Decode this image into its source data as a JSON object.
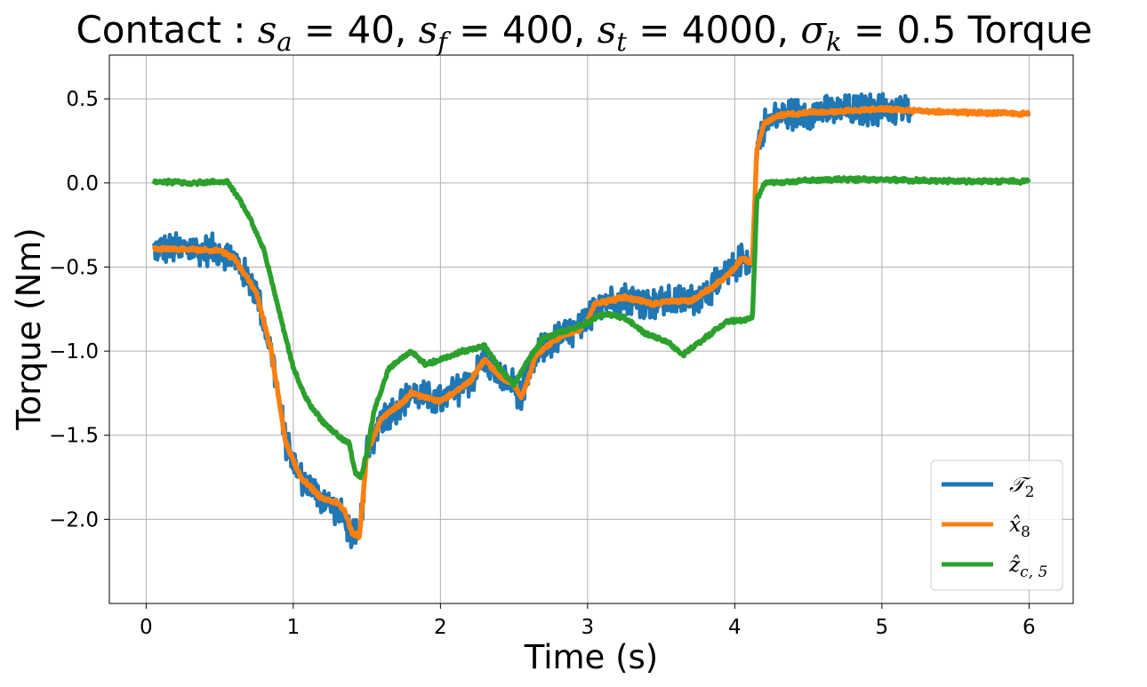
{
  "chart_data": {
    "type": "line",
    "title": "Contact : s_a = 40, s_f = 400, s_t = 4000, σ_k = 0.5 Torque",
    "title_parts": [
      {
        "t": "Contact : ",
        "s": "n"
      },
      {
        "t": "s",
        "s": "i"
      },
      {
        "t": "a",
        "s": "sub"
      },
      {
        "t": " = 40, ",
        "s": "n"
      },
      {
        "t": "s",
        "s": "i"
      },
      {
        "t": "f",
        "s": "sub"
      },
      {
        "t": " = 400, ",
        "s": "n"
      },
      {
        "t": "s",
        "s": "i"
      },
      {
        "t": "t",
        "s": "sub"
      },
      {
        "t": " = 4000, ",
        "s": "n"
      },
      {
        "t": "σ",
        "s": "i"
      },
      {
        "t": "k",
        "s": "sub"
      },
      {
        "t": " = 0.5 Torque",
        "s": "n"
      }
    ],
    "xlabel": "Time (s)",
    "ylabel": "Torque (Nm)",
    "xlim": [
      -0.25,
      6.3
    ],
    "ylim": [
      -2.5,
      0.76
    ],
    "xticks": [
      0,
      1,
      2,
      3,
      4,
      5,
      6
    ],
    "xtick_labels": [
      "0",
      "1",
      "2",
      "3",
      "4",
      "5",
      "6"
    ],
    "yticks": [
      0.5,
      0.0,
      -0.5,
      -1.0,
      -1.5,
      -2.0
    ],
    "ytick_labels": [
      "0.5",
      "0.0",
      "−0.5",
      "−1.0",
      "−1.5",
      "−2.0"
    ],
    "grid": true,
    "legend_position": "bottom-right",
    "series": [
      {
        "name": "𝒯2",
        "legend_main": "𝒯",
        "legend_sub": "2",
        "color": "#1f77b4",
        "noise": 0.1,
        "x": [
          0.05,
          0.5,
          0.6,
          0.75,
          0.85,
          0.95,
          1.05,
          1.2,
          1.3,
          1.35,
          1.4,
          1.45,
          1.5,
          1.6,
          1.75,
          1.8,
          2.0,
          2.2,
          2.3,
          2.35,
          2.4,
          2.5,
          2.55,
          2.65,
          2.8,
          2.95,
          3.0,
          3.05,
          3.25,
          3.45,
          3.6,
          3.7,
          3.85,
          3.95,
          4.05,
          4.1,
          4.12,
          4.15,
          4.2,
          4.3,
          4.5,
          4.8,
          5.0,
          5.2,
          5.5,
          6.0
        ],
        "y": [
          -0.39,
          -0.4,
          -0.45,
          -0.65,
          -1.0,
          -1.55,
          -1.75,
          -1.88,
          -1.95,
          -2.0,
          -2.1,
          -2.1,
          -1.6,
          -1.4,
          -1.3,
          -1.25,
          -1.3,
          -1.18,
          -1.05,
          -1.1,
          -1.15,
          -1.2,
          -1.28,
          -1.02,
          -0.92,
          -0.87,
          -0.82,
          -0.72,
          -0.68,
          -0.72,
          -0.7,
          -0.7,
          -0.62,
          -0.55,
          -0.45,
          -0.47,
          -0.47,
          0.2,
          0.35,
          0.4,
          0.42,
          0.43,
          0.44,
          0.43,
          0.42,
          0.41
        ]
      },
      {
        "name": "x̂8",
        "legend_main": "x̂",
        "legend_sub": "8",
        "color": "#ff7f0e",
        "noise": 0.012,
        "x": [
          0.05,
          0.5,
          0.6,
          0.75,
          0.85,
          0.95,
          1.05,
          1.2,
          1.3,
          1.35,
          1.4,
          1.45,
          1.5,
          1.6,
          1.75,
          1.8,
          2.0,
          2.2,
          2.3,
          2.35,
          2.4,
          2.5,
          2.55,
          2.65,
          2.8,
          2.95,
          3.0,
          3.05,
          3.25,
          3.45,
          3.6,
          3.7,
          3.85,
          3.95,
          4.05,
          4.1,
          4.12,
          4.15,
          4.2,
          4.3,
          4.5,
          4.8,
          5.0,
          5.2,
          5.5,
          6.0
        ],
        "y": [
          -0.39,
          -0.4,
          -0.45,
          -0.65,
          -1.0,
          -1.55,
          -1.75,
          -1.88,
          -1.9,
          -1.95,
          -2.08,
          -2.1,
          -1.6,
          -1.4,
          -1.3,
          -1.25,
          -1.3,
          -1.18,
          -1.05,
          -1.1,
          -1.15,
          -1.2,
          -1.28,
          -1.02,
          -0.92,
          -0.87,
          -0.82,
          -0.72,
          -0.68,
          -0.72,
          -0.7,
          -0.7,
          -0.62,
          -0.55,
          -0.45,
          -0.47,
          -0.47,
          0.2,
          0.35,
          0.4,
          0.42,
          0.43,
          0.44,
          0.43,
          0.42,
          0.41
        ]
      },
      {
        "name": "ẑc,5",
        "legend_main": "ẑ",
        "legend_sub": "c, 5",
        "color": "#2ca02c",
        "noise": 0.012,
        "x": [
          0.05,
          0.3,
          0.55,
          0.62,
          0.7,
          0.8,
          0.9,
          1.0,
          1.1,
          1.2,
          1.3,
          1.38,
          1.42,
          1.46,
          1.5,
          1.55,
          1.65,
          1.8,
          1.9,
          2.0,
          2.15,
          2.3,
          2.4,
          2.5,
          2.6,
          2.7,
          2.85,
          3.0,
          3.1,
          3.25,
          3.4,
          3.55,
          3.65,
          3.8,
          3.95,
          4.05,
          4.12,
          4.15,
          4.2,
          4.4,
          4.6,
          5.0,
          5.5,
          6.0
        ],
        "y": [
          0.01,
          0.0,
          0.01,
          -0.08,
          -0.2,
          -0.4,
          -0.75,
          -1.1,
          -1.3,
          -1.42,
          -1.5,
          -1.55,
          -1.72,
          -1.75,
          -1.6,
          -1.35,
          -1.1,
          -1.0,
          -1.08,
          -1.05,
          -1.0,
          -0.97,
          -1.1,
          -1.2,
          -1.05,
          -0.92,
          -0.88,
          -0.83,
          -0.78,
          -0.8,
          -0.9,
          -0.95,
          -1.02,
          -0.92,
          -0.82,
          -0.82,
          -0.8,
          -0.1,
          0.0,
          0.01,
          0.02,
          0.02,
          0.01,
          0.01
        ]
      }
    ]
  }
}
